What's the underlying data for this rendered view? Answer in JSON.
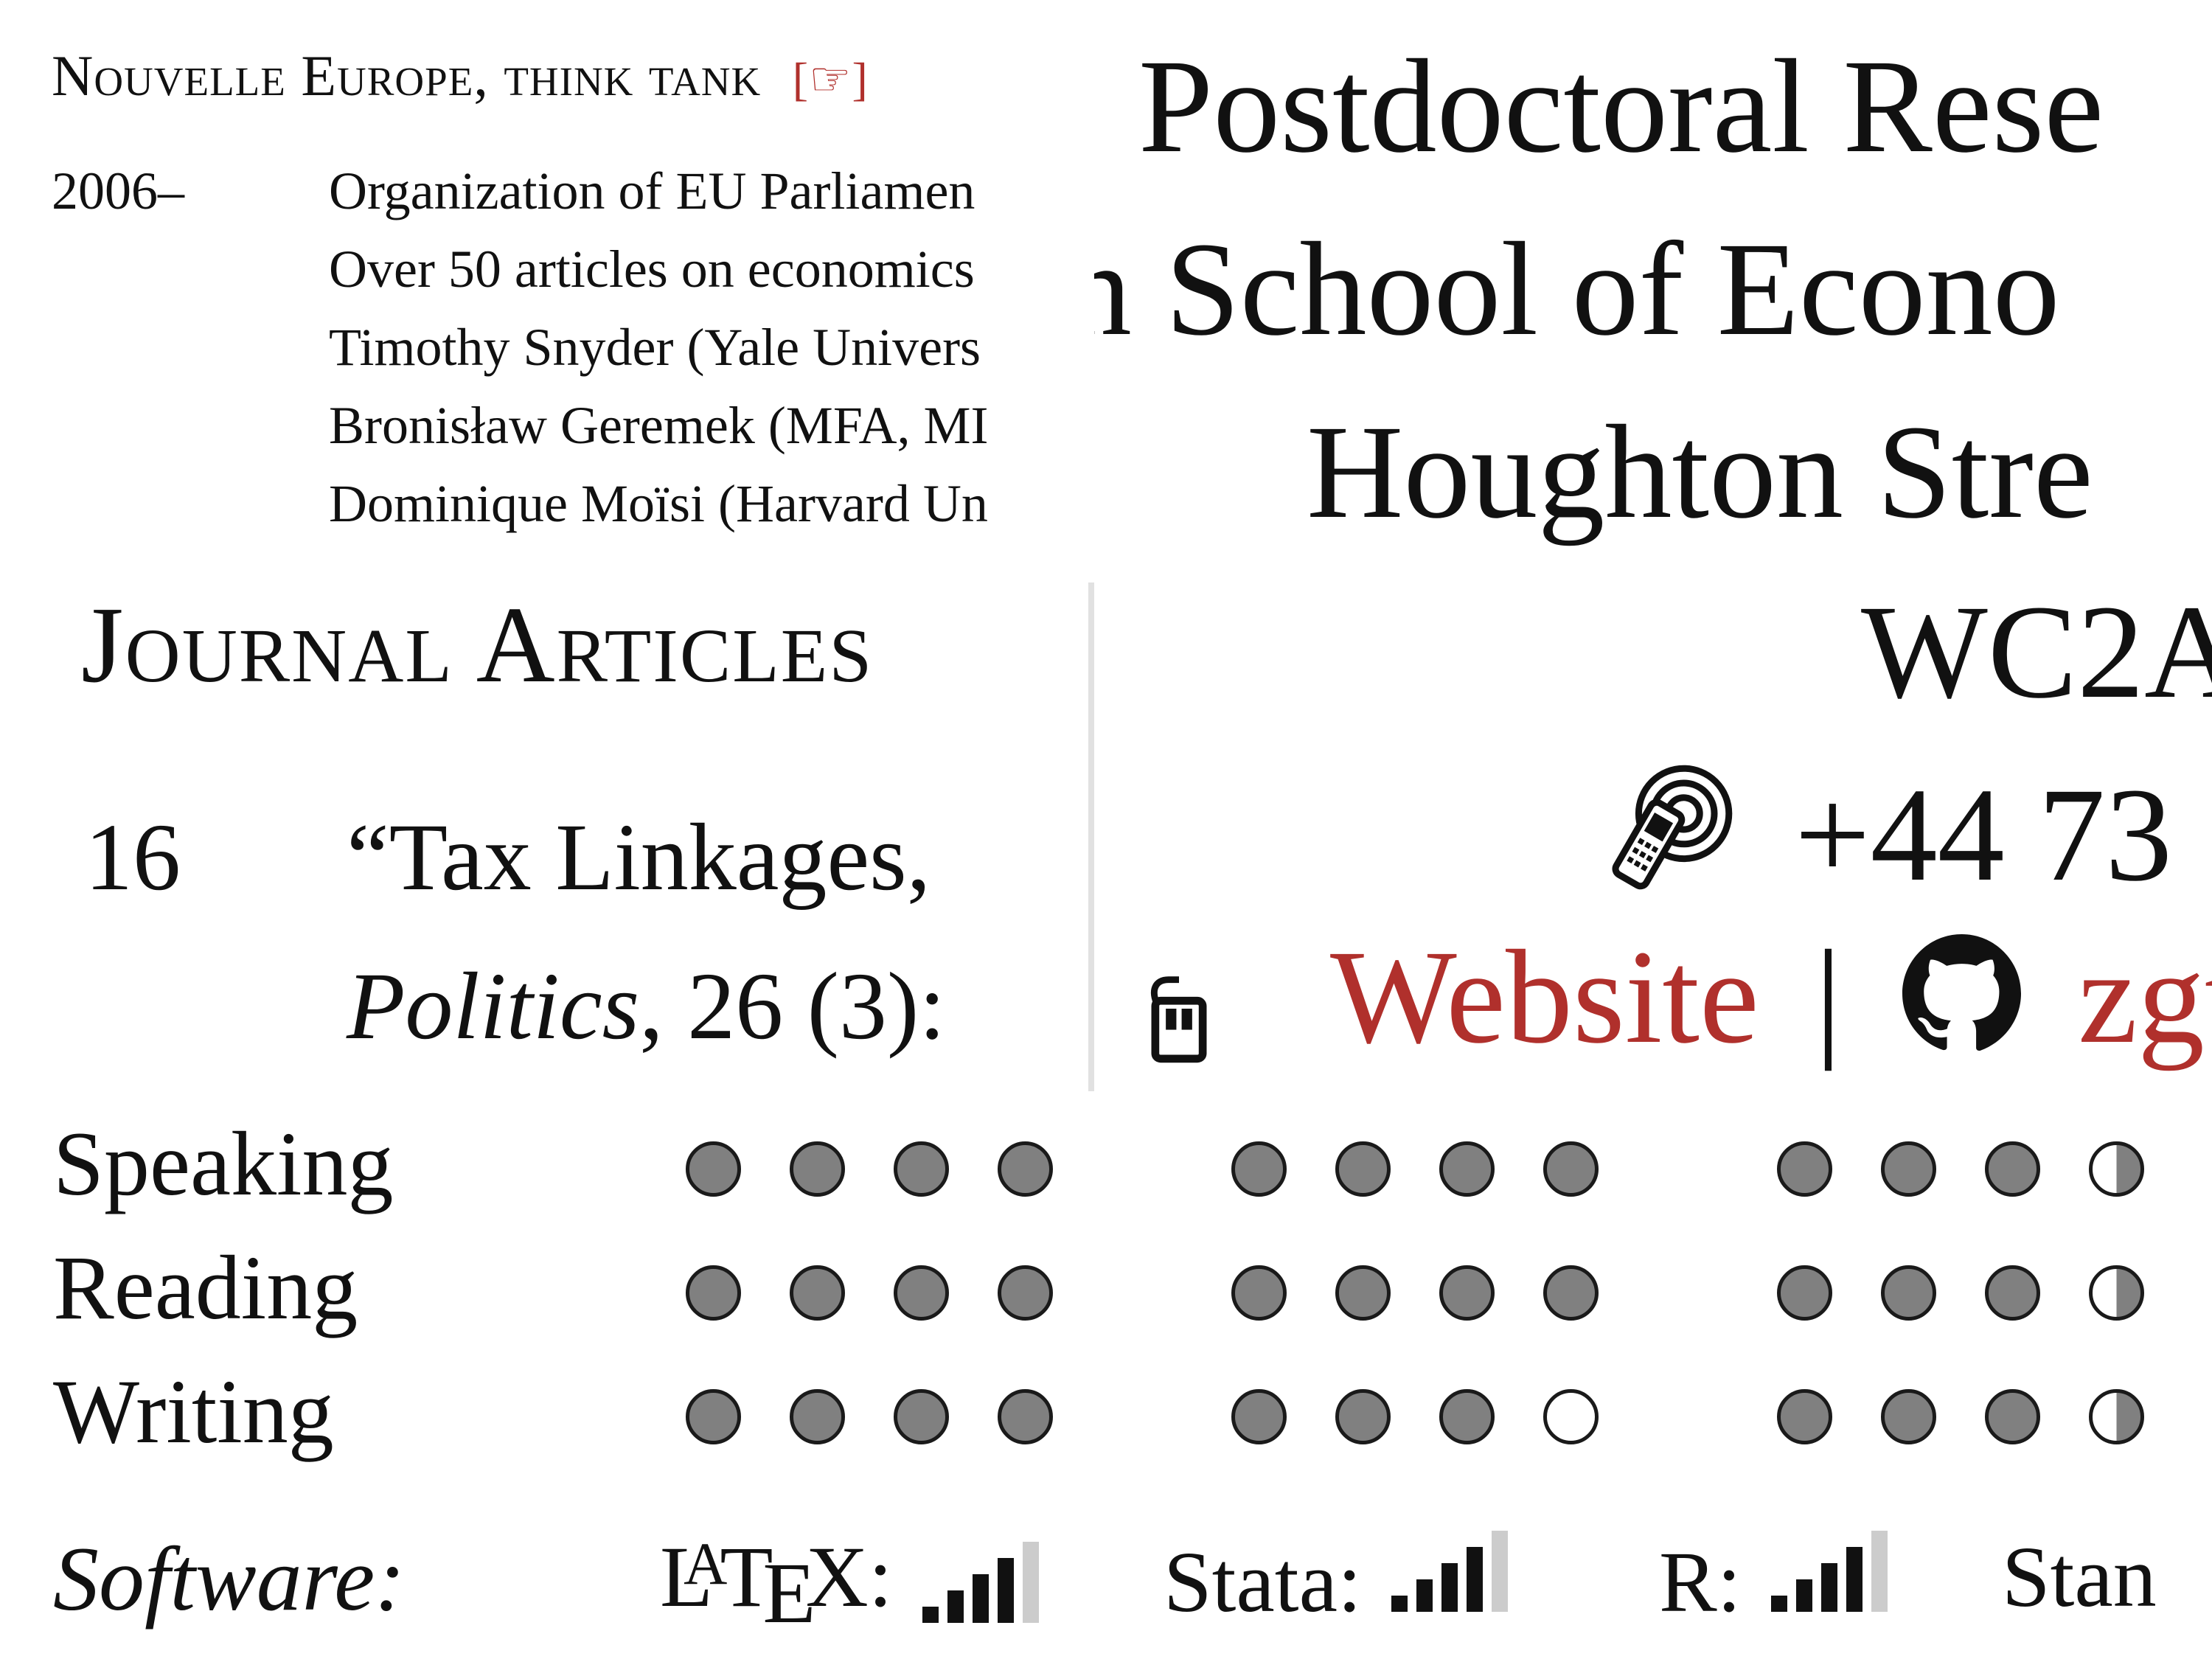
{
  "experience": {
    "organization": "Nouvelle Europe, think tank",
    "link_mark": "[☞]",
    "years": "2006–",
    "lines": [
      "Organization of EU Parliamen",
      "Over 50 articles on economics",
      "Timothy Snyder (Yale Univers",
      "Bronisław Geremek (MFA, MI",
      "Dominique Moïsi (Harvard Un"
    ]
  },
  "journal": {
    "heading": "Journal Articles",
    "number": "16",
    "title_fragment": "“Tax Linkages,",
    "journal_italic": "Politics",
    "journal_rest": ", 26 (3):"
  },
  "header": {
    "position": "Postdoctoral Rese",
    "institution": "n School of Econo",
    "street": "Houghton Stre",
    "postcode": "WC2A",
    "phone": "+44 73",
    "website_label": "Website",
    "separator": "|",
    "github_label": "zgt"
  },
  "languages": {
    "rows": [
      {
        "label": "Speaking",
        "groups": [
          [
            1,
            1,
            1,
            1
          ],
          [
            1,
            1,
            1,
            1
          ],
          [
            1,
            1,
            1,
            0.5
          ]
        ]
      },
      {
        "label": "Reading",
        "groups": [
          [
            1,
            1,
            1,
            1
          ],
          [
            1,
            1,
            1,
            1
          ],
          [
            1,
            1,
            1,
            0.5
          ]
        ]
      },
      {
        "label": "Writing",
        "groups": [
          [
            1,
            1,
            1,
            1
          ],
          [
            1,
            1,
            1,
            0
          ],
          [
            1,
            1,
            1,
            0.5
          ]
        ]
      }
    ]
  },
  "software": {
    "label": "Software:",
    "items": [
      {
        "name_parts": [
          "L",
          "A",
          "T",
          "E",
          "X"
        ],
        "suffix": ":",
        "level": 4,
        "max": 5
      },
      {
        "name": "Stata:",
        "level": 4,
        "max": 5
      },
      {
        "name": "R:",
        "level": 4,
        "max": 5
      },
      {
        "name": "Stan",
        "level": null,
        "max": null
      }
    ]
  },
  "colors": {
    "accent_red": "#b0302c",
    "dot_filled": "#808080",
    "bar_inactive": "#cccccc"
  },
  "icons": [
    "pointing-hand-icon",
    "mobile-phone-icon",
    "mouse-icon",
    "github-icon"
  ]
}
